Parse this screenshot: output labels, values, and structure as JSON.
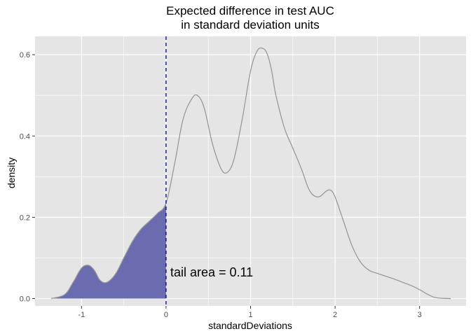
{
  "chart_data": {
    "type": "area",
    "title_lines": [
      "Expected difference in test AUC",
      "in standard deviation units"
    ],
    "xlabel": "standardDeviations",
    "ylabel": "density",
    "xlim": [
      -1.55,
      3.55
    ],
    "ylim": [
      -0.018,
      0.645
    ],
    "x_ticks": [
      -1,
      0,
      1,
      2,
      3
    ],
    "x_tick_labels": [
      "-1",
      "0",
      "1",
      "2",
      "3"
    ],
    "y_ticks": [
      0.0,
      0.2,
      0.4,
      0.6
    ],
    "y_tick_labels": [
      "0.0",
      "0.2",
      "0.4",
      "0.6"
    ],
    "grid": true,
    "vline": {
      "x": 0,
      "style": "dashed",
      "color": "#00008b"
    },
    "annotation": {
      "text": "tail area =  0.11",
      "x": 0.05,
      "y": 0.065
    },
    "shade_range": [
      -1.36,
      0
    ],
    "colors": {
      "panel": "#e5e5e5",
      "grid": "#ffffff",
      "curve": "#999999",
      "fill": "#6b6baf"
    },
    "series": [
      {
        "x": [
          -1.36,
          -1.2,
          -1.1,
          -1.0,
          -0.92,
          -0.85,
          -0.78,
          -0.7,
          -0.6,
          -0.5,
          -0.4,
          -0.3,
          -0.2,
          -0.1,
          0.0,
          0.1,
          0.2,
          0.3,
          0.37,
          0.45,
          0.55,
          0.65,
          0.72,
          0.8,
          0.9,
          1.0,
          1.08,
          1.15,
          1.2,
          1.25,
          1.3,
          1.4,
          1.5,
          1.6,
          1.7,
          1.8,
          1.9,
          1.95,
          2.0,
          2.1,
          2.2,
          2.3,
          2.4,
          2.5,
          2.6,
          2.7,
          2.8,
          2.9,
          3.0,
          3.1,
          3.2,
          3.37
        ],
        "y": [
          0.0,
          0.01,
          0.04,
          0.075,
          0.082,
          0.07,
          0.045,
          0.04,
          0.06,
          0.1,
          0.14,
          0.17,
          0.19,
          0.21,
          0.235,
          0.33,
          0.44,
          0.49,
          0.5,
          0.47,
          0.38,
          0.32,
          0.31,
          0.34,
          0.44,
          0.56,
          0.61,
          0.615,
          0.6,
          0.56,
          0.5,
          0.42,
          0.37,
          0.32,
          0.265,
          0.25,
          0.265,
          0.266,
          0.25,
          0.19,
          0.13,
          0.09,
          0.07,
          0.062,
          0.055,
          0.048,
          0.04,
          0.032,
          0.022,
          0.01,
          0.002,
          0.0
        ]
      }
    ]
  }
}
